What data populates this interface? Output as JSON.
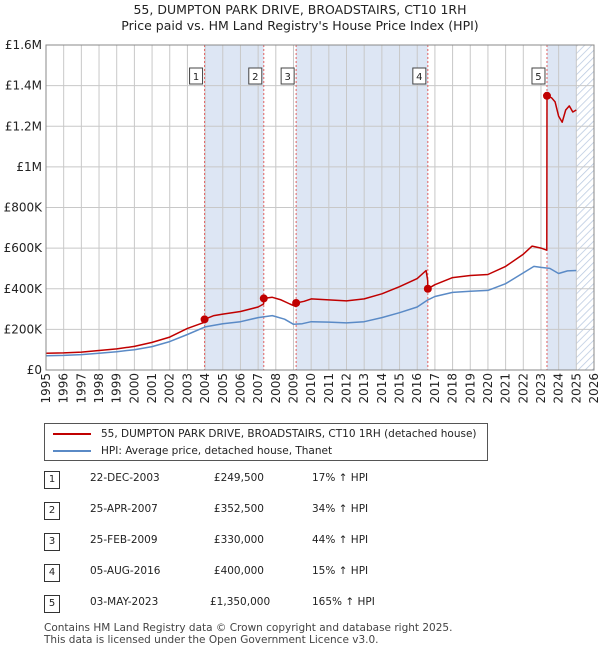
{
  "title": {
    "line1": "55, DUMPTON PARK DRIVE, BROADSTAIRS, CT10 1RH",
    "line2": "Price paid vs. HM Land Registry's House Price Index (HPI)"
  },
  "legend": {
    "property_label": "55, DUMPTON PARK DRIVE, BROADSTAIRS, CT10 1RH (detached house)",
    "hpi_label": "HPI: Average price, detached house, Thanet"
  },
  "colors": {
    "property_line": "#c00000",
    "hpi_line": "#5a8ac6",
    "shade": "#dde6f4",
    "grid": "#c8c8c8",
    "marker_line": "#e06060"
  },
  "sales": [
    {
      "num": "1",
      "date": "22-DEC-2003",
      "price": "£249,500",
      "hpi": "17% ↑ HPI"
    },
    {
      "num": "2",
      "date": "25-APR-2007",
      "price": "£352,500",
      "hpi": "34% ↑ HPI"
    },
    {
      "num": "3",
      "date": "25-FEB-2009",
      "price": "£330,000",
      "hpi": "44% ↑ HPI"
    },
    {
      "num": "4",
      "date": "05-AUG-2016",
      "price": "£400,000",
      "hpi": "15% ↑ HPI"
    },
    {
      "num": "5",
      "date": "03-MAY-2023",
      "price": "£1,350,000",
      "hpi": "165% ↑ HPI"
    }
  ],
  "footer": {
    "line1": "Contains HM Land Registry data © Crown copyright and database right 2025.",
    "line2": "This data is licensed under the Open Government Licence v3.0."
  },
  "chart_data": {
    "type": "line",
    "title": "Price paid vs. HM Land Registry's House Price Index (HPI)",
    "xlabel": "",
    "ylabel": "",
    "xlim": [
      1995,
      2026
    ],
    "ylim": [
      0,
      1600000
    ],
    "x_ticks": [
      1995,
      1996,
      1997,
      1998,
      1999,
      2000,
      2001,
      2002,
      2003,
      2004,
      2005,
      2006,
      2007,
      2008,
      2009,
      2010,
      2011,
      2012,
      2013,
      2014,
      2015,
      2016,
      2017,
      2018,
      2019,
      2020,
      2021,
      2022,
      2023,
      2024,
      2025,
      2026
    ],
    "y_ticks": [
      {
        "value": 0,
        "label": "£0"
      },
      {
        "value": 200000,
        "label": "£200K"
      },
      {
        "value": 400000,
        "label": "£400K"
      },
      {
        "value": 600000,
        "label": "£600K"
      },
      {
        "value": 800000,
        "label": "£800K"
      },
      {
        "value": 1000000,
        "label": "£1M"
      },
      {
        "value": 1200000,
        "label": "£1.2M"
      },
      {
        "value": 1400000,
        "label": "£1.4M"
      },
      {
        "value": 1600000,
        "label": "£1.6M"
      }
    ],
    "shaded_regions": [
      [
        2003.97,
        2007.32
      ],
      [
        2009.15,
        2016.6
      ],
      [
        2023.34,
        2025.0
      ]
    ],
    "hatched_region": [
      2025.0,
      2026.0
    ],
    "sale_markers": [
      {
        "num": "1",
        "x": 2003.97,
        "y": 249500
      },
      {
        "num": "2",
        "x": 2007.32,
        "y": 352500
      },
      {
        "num": "3",
        "x": 2009.15,
        "y": 330000
      },
      {
        "num": "4",
        "x": 2016.6,
        "y": 400000
      },
      {
        "num": "5",
        "x": 2023.34,
        "y": 1350000
      }
    ],
    "series": [
      {
        "name": "55, DUMPTON PARK DRIVE, BROADSTAIRS, CT10 1RH (detached house)",
        "color": "#c00000",
        "points": [
          [
            1995.0,
            82000
          ],
          [
            1996.0,
            84000
          ],
          [
            1997.0,
            88000
          ],
          [
            1998.0,
            96000
          ],
          [
            1999.0,
            104000
          ],
          [
            2000.0,
            116000
          ],
          [
            2001.0,
            136000
          ],
          [
            2002.0,
            162000
          ],
          [
            2003.0,
            205000
          ],
          [
            2003.96,
            235000
          ],
          [
            2003.97,
            249500
          ],
          [
            2004.5,
            268000
          ],
          [
            2005.0,
            275000
          ],
          [
            2006.0,
            288000
          ],
          [
            2007.0,
            310000
          ],
          [
            2007.31,
            325000
          ],
          [
            2007.32,
            352500
          ],
          [
            2007.8,
            358000
          ],
          [
            2008.3,
            345000
          ],
          [
            2008.8,
            325000
          ],
          [
            2009.14,
            312000
          ],
          [
            2009.15,
            330000
          ],
          [
            2009.6,
            338000
          ],
          [
            2010.0,
            350000
          ],
          [
            2011.0,
            345000
          ],
          [
            2012.0,
            340000
          ],
          [
            2013.0,
            350000
          ],
          [
            2014.0,
            375000
          ],
          [
            2015.0,
            410000
          ],
          [
            2016.0,
            450000
          ],
          [
            2016.5,
            490000
          ],
          [
            2016.59,
            440000
          ],
          [
            2016.6,
            400000
          ],
          [
            2017.0,
            420000
          ],
          [
            2018.0,
            455000
          ],
          [
            2019.0,
            465000
          ],
          [
            2020.0,
            470000
          ],
          [
            2021.0,
            510000
          ],
          [
            2022.0,
            570000
          ],
          [
            2022.5,
            610000
          ],
          [
            2023.0,
            600000
          ],
          [
            2023.33,
            590000
          ],
          [
            2023.34,
            1350000
          ],
          [
            2023.6,
            1340000
          ],
          [
            2023.8,
            1320000
          ],
          [
            2024.0,
            1250000
          ],
          [
            2024.2,
            1220000
          ],
          [
            2024.4,
            1280000
          ],
          [
            2024.6,
            1300000
          ],
          [
            2024.8,
            1270000
          ],
          [
            2025.0,
            1280000
          ]
        ]
      },
      {
        "name": "HPI: Average price, detached house, Thanet",
        "color": "#5a8ac6",
        "points": [
          [
            1995.0,
            70000
          ],
          [
            1996.0,
            72000
          ],
          [
            1997.0,
            76000
          ],
          [
            1998.0,
            82000
          ],
          [
            1999.0,
            90000
          ],
          [
            2000.0,
            100000
          ],
          [
            2001.0,
            115000
          ],
          [
            2002.0,
            140000
          ],
          [
            2003.0,
            175000
          ],
          [
            2004.0,
            212000
          ],
          [
            2005.0,
            228000
          ],
          [
            2006.0,
            238000
          ],
          [
            2007.0,
            258000
          ],
          [
            2007.8,
            268000
          ],
          [
            2008.5,
            250000
          ],
          [
            2009.0,
            225000
          ],
          [
            2009.5,
            228000
          ],
          [
            2010.0,
            238000
          ],
          [
            2011.0,
            236000
          ],
          [
            2012.0,
            232000
          ],
          [
            2013.0,
            238000
          ],
          [
            2014.0,
            258000
          ],
          [
            2015.0,
            282000
          ],
          [
            2016.0,
            310000
          ],
          [
            2016.6,
            345000
          ],
          [
            2017.0,
            362000
          ],
          [
            2018.0,
            382000
          ],
          [
            2019.0,
            388000
          ],
          [
            2020.0,
            392000
          ],
          [
            2021.0,
            425000
          ],
          [
            2022.0,
            478000
          ],
          [
            2022.6,
            510000
          ],
          [
            2023.0,
            505000
          ],
          [
            2023.5,
            500000
          ],
          [
            2024.0,
            475000
          ],
          [
            2024.5,
            488000
          ],
          [
            2025.0,
            490000
          ]
        ]
      }
    ]
  }
}
